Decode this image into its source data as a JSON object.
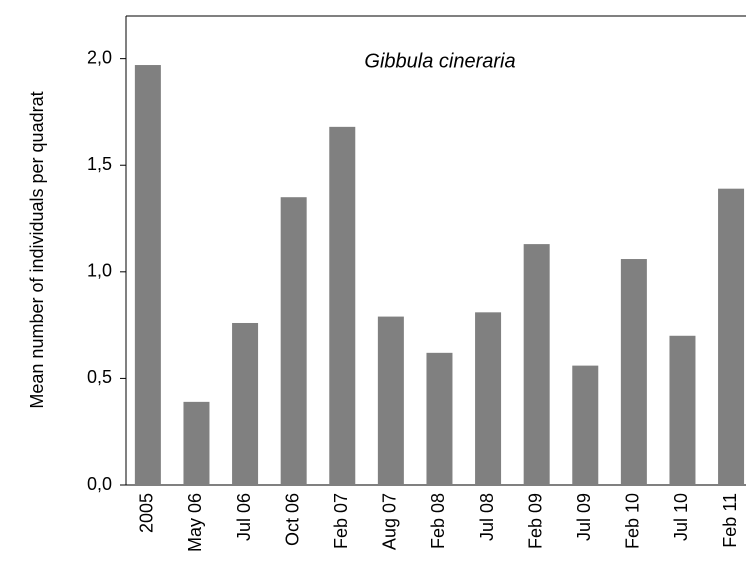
{
  "chart_data": {
    "type": "bar",
    "title": "Gibbula cineraria",
    "y_label": "Mean number of individuals per quadrat",
    "categories": [
      "2005",
      "May 06",
      "Jul 06",
      "Oct 06",
      "Feb 07",
      "Aug 07",
      "Feb 08",
      "Jul 08",
      "Feb 09",
      "Jul 09",
      "Feb 10",
      "Jul 10",
      "Feb 11"
    ],
    "values": [
      1.97,
      0.39,
      0.76,
      1.35,
      1.68,
      0.79,
      0.62,
      0.81,
      1.13,
      0.56,
      1.06,
      0.7,
      1.39
    ],
    "color": "#808080",
    "ylim": [
      0,
      2.2
    ],
    "yticks": [
      {
        "value": 0,
        "label": "0,0"
      },
      {
        "value": 0.5,
        "label": "0,5"
      },
      {
        "value": 1,
        "label": "1,0"
      },
      {
        "value": 1.5,
        "label": "1,5"
      },
      {
        "value": 2,
        "label": "2,0"
      }
    ],
    "grid": false
  }
}
